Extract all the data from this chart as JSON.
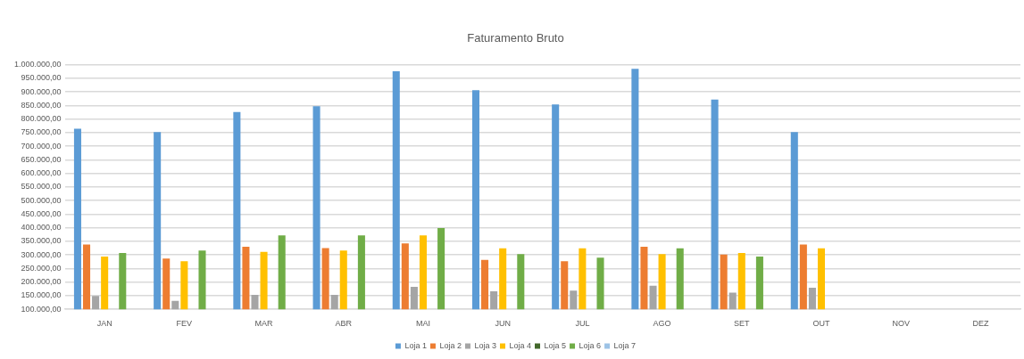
{
  "chart_data": {
    "type": "bar",
    "title": "Faturamento Bruto",
    "categories": [
      "JAN",
      "FEV",
      "MAR",
      "ABR",
      "MAI",
      "JUN",
      "JUL",
      "AGO",
      "SET",
      "OUT",
      "NOV",
      "DEZ"
    ],
    "series": [
      {
        "name": "Loja 1",
        "color": "#5b9bd5",
        "values": [
          764000,
          752000,
          826000,
          847000,
          976000,
          906000,
          854000,
          985000,
          872000,
          752000,
          null,
          null
        ]
      },
      {
        "name": "Loja 2",
        "color": "#ed7d31",
        "values": [
          338000,
          287000,
          330000,
          325000,
          342000,
          282000,
          277000,
          330000,
          301000,
          338000,
          null,
          null
        ]
      },
      {
        "name": "Loja 3",
        "color": "#a5a5a5",
        "values": [
          149000,
          131000,
          153000,
          153000,
          183000,
          166000,
          169000,
          187000,
          161000,
          179000,
          null,
          null
        ]
      },
      {
        "name": "Loja 4",
        "color": "#ffc000",
        "values": [
          294000,
          277000,
          311000,
          316000,
          372000,
          324000,
          324000,
          303000,
          307000,
          324000,
          null,
          null
        ]
      },
      {
        "name": "Loja 5",
        "color": "#43682b",
        "values": [
          null,
          null,
          null,
          null,
          null,
          null,
          null,
          null,
          null,
          null,
          null,
          null
        ]
      },
      {
        "name": "Loja 6",
        "color": "#70ad47",
        "values": [
          307000,
          316000,
          372000,
          372000,
          399000,
          303000,
          290000,
          324000,
          294000,
          null,
          null,
          null
        ]
      },
      {
        "name": "Loja 7",
        "color": "#9dc3e6",
        "values": [
          null,
          null,
          null,
          null,
          null,
          null,
          null,
          null,
          null,
          null,
          null,
          null
        ]
      }
    ],
    "ylim": [
      100000,
      1000000
    ],
    "yticks": [
      {
        "value": 100000,
        "label": "100.000,00"
      },
      {
        "value": 150000,
        "label": "150.000,00"
      },
      {
        "value": 200000,
        "label": "200.000,00"
      },
      {
        "value": 250000,
        "label": "250.000,00"
      },
      {
        "value": 300000,
        "label": "300.000,00"
      },
      {
        "value": 350000,
        "label": "350.000,00"
      },
      {
        "value": 400000,
        "label": "400.000,00"
      },
      {
        "value": 450000,
        "label": "450.000,00"
      },
      {
        "value": 500000,
        "label": "500.000,00"
      },
      {
        "value": 550000,
        "label": "550.000,00"
      },
      {
        "value": 600000,
        "label": "600.000,00"
      },
      {
        "value": 650000,
        "label": "650.000,00"
      },
      {
        "value": 700000,
        "label": "700.000,00"
      },
      {
        "value": 750000,
        "label": "750.000,00"
      },
      {
        "value": 800000,
        "label": "800.000,00"
      },
      {
        "value": 850000,
        "label": "850.000,00"
      },
      {
        "value": 900000,
        "label": "900.000,00"
      },
      {
        "value": 950000,
        "label": "950.000,00"
      },
      {
        "value": 1000000,
        "label": "1.000.000,00"
      }
    ],
    "grid": "y",
    "legend": "bottom"
  }
}
